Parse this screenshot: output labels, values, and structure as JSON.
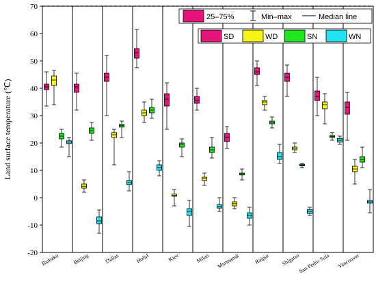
{
  "chart_data": {
    "type": "box",
    "ylabel": "Land surface temperature (℃)",
    "ylim": [
      -20,
      70
    ],
    "yticks": [
      -20,
      -10,
      0,
      10,
      20,
      30,
      40,
      50,
      60,
      70
    ],
    "categories": [
      "Bamako",
      "Beijing",
      "Dallas",
      "Hofuf",
      "Kiev",
      "Milan",
      "Murmansk",
      "Raipur",
      "Shigatse",
      "San Pedro Sula",
      "Vancouver"
    ],
    "legend_stats": {
      "box_label": "25–75%",
      "whisker_label": "Min–max",
      "median_label": "Median line"
    },
    "series": [
      {
        "name": "SD",
        "color": "#e8137a",
        "boxes": [
          {
            "min": 33.5,
            "q1": 39.5,
            "median": 40.5,
            "q3": 41.5,
            "max": 46
          },
          {
            "min": 32,
            "q1": 38.5,
            "median": 40.5,
            "q3": 41.5,
            "max": 45.5
          },
          {
            "min": 30,
            "q1": 42.5,
            "median": 44,
            "q3": 45.5,
            "max": 52
          },
          {
            "min": 47.5,
            "q1": 51,
            "median": 53,
            "q3": 54.5,
            "max": 61.5
          },
          {
            "min": 25,
            "q1": 33.5,
            "median": 36,
            "q3": 38,
            "max": 42
          },
          {
            "min": 32,
            "q1": 34.5,
            "median": 35.5,
            "q3": 37,
            "max": 40
          },
          {
            "min": 18,
            "q1": 20.5,
            "median": 22,
            "q3": 23.5,
            "max": 26
          },
          {
            "min": 41,
            "q1": 45,
            "median": 46,
            "q3": 47.5,
            "max": 50
          },
          {
            "min": 37,
            "q1": 42.5,
            "median": 44,
            "q3": 45.5,
            "max": 48.5
          },
          {
            "min": 30,
            "q1": 35.5,
            "median": 37,
            "q3": 39,
            "max": 44
          },
          {
            "min": 21,
            "q1": 30.5,
            "median": 33,
            "q3": 35,
            "max": 38.5
          }
        ]
      },
      {
        "name": "WD",
        "color": "#f7f314",
        "boxes": [
          {
            "min": 34,
            "q1": 41,
            "median": 43,
            "q3": 44.5,
            "max": 46.5
          },
          {
            "min": 2,
            "q1": 3.5,
            "median": 4.2,
            "q3": 5,
            "max": 6.5
          },
          {
            "min": 12,
            "q1": 22,
            "median": 23,
            "q3": 23.8,
            "max": 25
          },
          {
            "min": 27.5,
            "q1": 30,
            "median": 31,
            "q3": 32,
            "max": 35
          },
          {
            "min": -3,
            "q1": 0.5,
            "median": 0.9,
            "q3": 1.3,
            "max": 3
          },
          {
            "min": 4.5,
            "q1": 6.3,
            "median": 7,
            "q3": 7.5,
            "max": 9
          },
          {
            "min": -4,
            "q1": -3,
            "median": -2.2,
            "q3": -1.5,
            "max": 0
          },
          {
            "min": 32,
            "q1": 34,
            "median": 35,
            "q3": 35.5,
            "max": 37
          },
          {
            "min": 16.5,
            "q1": 17.5,
            "median": 18,
            "q3": 18.5,
            "max": 20
          },
          {
            "min": 27,
            "q1": 32.5,
            "median": 34,
            "q3": 35,
            "max": 38
          },
          {
            "min": 5,
            "q1": 9.5,
            "median": 10.5,
            "q3": 11.5,
            "max": 14
          }
        ]
      },
      {
        "name": "SN",
        "color": "#1ee51e",
        "boxes": [
          {
            "min": 18.5,
            "q1": 21.5,
            "median": 22.5,
            "q3": 23.5,
            "max": 25
          },
          {
            "min": 21,
            "q1": 23.5,
            "median": 24.5,
            "q3": 25.5,
            "max": 27.5
          },
          {
            "min": 22,
            "q1": 25.8,
            "median": 26.3,
            "q3": 26.8,
            "max": 28
          },
          {
            "min": 29,
            "q1": 31,
            "median": 32,
            "q3": 33,
            "max": 36
          },
          {
            "min": 15,
            "q1": 18.5,
            "median": 19.5,
            "q3": 20,
            "max": 21.5
          },
          {
            "min": 14.5,
            "q1": 16.5,
            "median": 17.5,
            "q3": 18.5,
            "max": 22
          },
          {
            "min": 6.5,
            "q1": 8.3,
            "median": 8.7,
            "q3": 9,
            "max": 10.5
          },
          {
            "min": 25.5,
            "q1": 27,
            "median": 27.5,
            "q3": 28,
            "max": 29.5
          },
          {
            "min": 11,
            "q1": 11.6,
            "median": 11.9,
            "q3": 12.2,
            "max": 12.5
          },
          {
            "min": 21,
            "q1": 22,
            "median": 22.4,
            "q3": 22.8,
            "max": 23.8
          },
          {
            "min": 11,
            "q1": 13,
            "median": 14,
            "q3": 15,
            "max": 18.5
          }
        ]
      },
      {
        "name": "WN",
        "color": "#20e2f2",
        "boxes": [
          {
            "min": 15,
            "q1": 19.8,
            "median": 20.3,
            "q3": 20.8,
            "max": 22
          },
          {
            "min": -13,
            "q1": -9.5,
            "median": -8.5,
            "q3": -7,
            "max": -4.5
          },
          {
            "min": 2.5,
            "q1": 4.8,
            "median": 5.5,
            "q3": 6.3,
            "max": 9.5
          },
          {
            "min": 8,
            "q1": 10,
            "median": 11,
            "q3": 12,
            "max": 13.5
          },
          {
            "min": -10.5,
            "q1": -6.5,
            "median": -5,
            "q3": -4,
            "max": -1
          },
          {
            "min": -5,
            "q1": -3.8,
            "median": -3.2,
            "q3": -2.5,
            "max": 0
          },
          {
            "min": -10,
            "q1": -7.5,
            "median": -6.5,
            "q3": -5.5,
            "max": -3.5
          },
          {
            "min": 12.5,
            "q1": 14,
            "median": 15,
            "q3": 16.5,
            "max": 19.5
          },
          {
            "min": -6.5,
            "q1": -5.8,
            "median": -5,
            "q3": -4.3,
            "max": -3.5
          },
          {
            "min": 19.5,
            "q1": 20.3,
            "median": 21,
            "q3": 21.7,
            "max": 22.5
          },
          {
            "min": -5.5,
            "q1": -2,
            "median": -1.5,
            "q3": -1,
            "max": 3
          }
        ]
      }
    ]
  }
}
